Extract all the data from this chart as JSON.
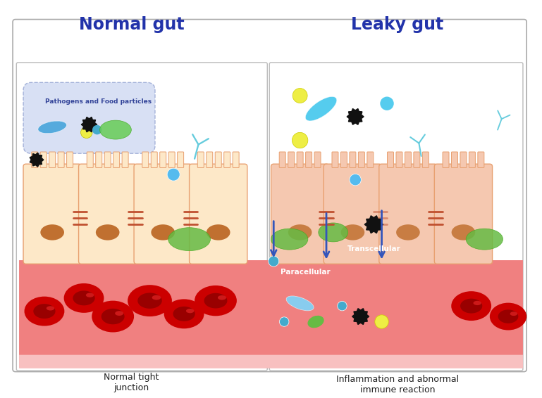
{
  "title_left": "Normal gut",
  "title_right": "Leaky gut",
  "label_left": "Normal tight\njunction",
  "label_right": "Inflammation and abnormal\nimmune reaction",
  "label_transcellular": "Transcellular",
  "label_paracellular": "Paracellular",
  "label_pathogens": "Pathogens and Food particles",
  "bg_color": "#ffffff",
  "border_color": "#cccccc",
  "title_color": "#2233aa",
  "cell_fill": "#fde8c8",
  "cell_leaky_fill": "#f5c8b0",
  "cell_border": "#e8a070",
  "nucleus_color": "#c07030",
  "tight_junction_color": "#c05030",
  "blood_bg": "#f08080",
  "blood_bg2": "#f5a0a0",
  "rbc_color": "#cc0000",
  "rbc_inner": "#990000",
  "rbc_highlight": "#ff3333",
  "pathogen_blob_color": "#c8d4f0",
  "pathogen_blob_border": "#8899cc",
  "bacteria_color": "#55aadd",
  "bacteria_leaky_color": "#55ccee",
  "antibody_color": "#66ccdd",
  "yellow_ball": "#eeee44",
  "cyan_ball": "#44aacc",
  "green_blob": "#55cc55",
  "black_spike": "#111111",
  "arrow_color": "#3355bb",
  "mucus_color": "#66bb44",
  "fig_width": 7.69,
  "fig_height": 5.66
}
